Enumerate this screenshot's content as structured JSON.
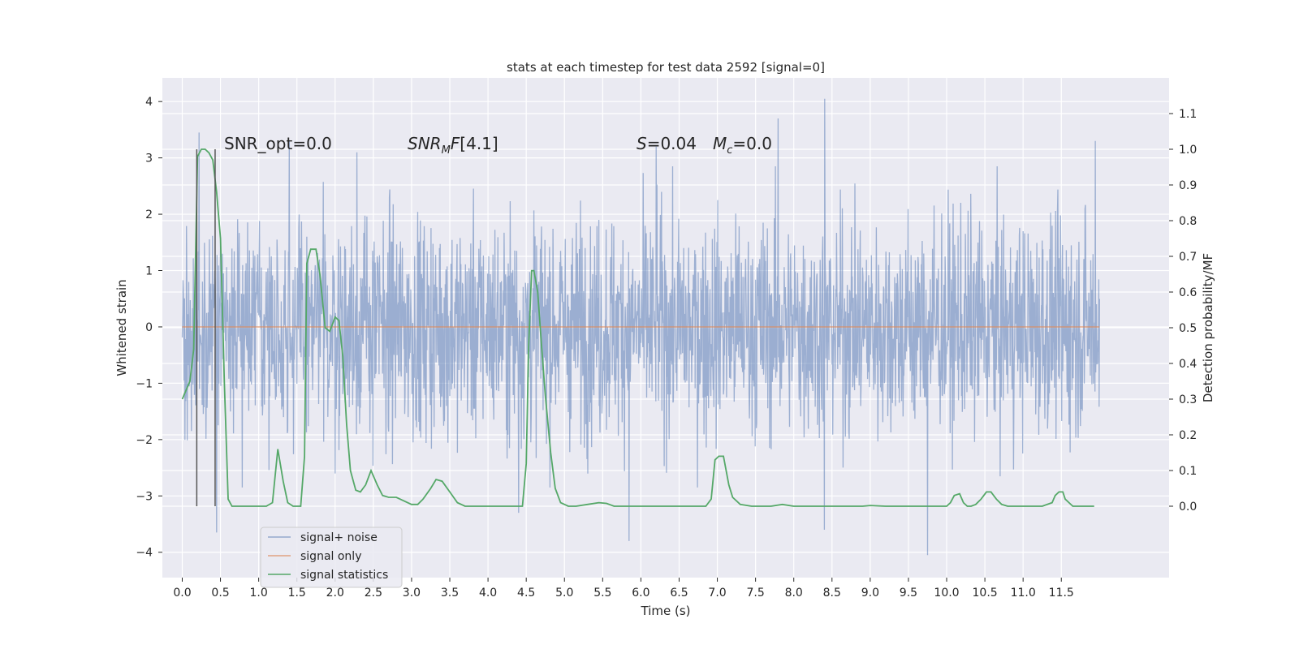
{
  "chart_data": {
    "type": "line",
    "title": "stats at each timestep for test data 2592 [signal=0]",
    "xlabel": "Time (s)",
    "ylabel": "Whitened strain",
    "y2label": "Detection probability/MF",
    "xlim": [
      -0.26,
      12.91
    ],
    "ylim": [
      -4.45,
      4.42
    ],
    "y2lim": [
      -0.2,
      1.2
    ],
    "x_ticks": [
      "0.0",
      "0.5",
      "1.0",
      "1.5",
      "2.0",
      "2.5",
      "3.0",
      "3.5",
      "4.0",
      "4.5",
      "5.0",
      "5.5",
      "6.0",
      "6.5",
      "7.0",
      "7.5",
      "8.0",
      "8.5",
      "9.0",
      "9.5",
      "10.0",
      "10.5",
      "11.0",
      "11.5"
    ],
    "y_ticks": [
      "4",
      "3",
      "2",
      "1",
      "0",
      "−1",
      "−2",
      "−3",
      "−4"
    ],
    "y2_ticks": [
      "1.1",
      "1.0",
      "0.9",
      "0.8",
      "0.7",
      "0.6",
      "0.5",
      "0.4",
      "0.3",
      "0.2",
      "0.1",
      "0.0"
    ],
    "grid": true,
    "legend_position": "lower-left",
    "annotations": {
      "snr_opt": "SNR_opt=0.0",
      "snr_mf": "[4.1]",
      "s_value": "=0.04",
      "mc_value": "=0.0"
    },
    "series": [
      {
        "name": "signal+ noise",
        "color": "#4c72b0",
        "axis": "left",
        "style": "dense-noise",
        "x_range": [
          0.0,
          12.0
        ],
        "typical_band": [
          -1.9,
          1.9
        ],
        "peaks": [
          {
            "x": 0.24,
            "y": 3.45
          },
          {
            "x": 0.45,
            "y": -3.65
          },
          {
            "x": 1.4,
            "y": 3.3
          },
          {
            "x": 2.28,
            "y": 3.1
          },
          {
            "x": 4.4,
            "y": -3.3
          },
          {
            "x": 5.85,
            "y": -3.8
          },
          {
            "x": 6.2,
            "y": 3.2
          },
          {
            "x": 7.8,
            "y": 3.7
          },
          {
            "x": 8.4,
            "y": 4.05
          },
          {
            "x": 8.4,
            "y": -3.6
          },
          {
            "x": 9.75,
            "y": -4.05
          },
          {
            "x": 11.95,
            "y": 3.3
          }
        ]
      },
      {
        "name": "signal only",
        "color": "#dd8452",
        "axis": "left",
        "x": [
          0.0,
          12.0
        ],
        "values": [
          0.0,
          0.0
        ]
      },
      {
        "name": "signal statistics",
        "color": "#55a868",
        "axis": "right",
        "x": [
          0.0,
          0.1,
          0.15,
          0.2,
          0.25,
          0.3,
          0.35,
          0.4,
          0.45,
          0.5,
          0.55,
          0.6,
          0.65,
          0.7,
          1.0,
          1.1,
          1.18,
          1.25,
          1.32,
          1.38,
          1.45,
          1.55,
          1.6,
          1.63,
          1.68,
          1.75,
          1.8,
          1.87,
          1.93,
          2.0,
          2.05,
          2.1,
          2.15,
          2.2,
          2.27,
          2.33,
          2.4,
          2.47,
          2.55,
          2.62,
          2.7,
          2.8,
          2.9,
          3.0,
          3.08,
          3.15,
          3.25,
          3.32,
          3.4,
          3.5,
          3.6,
          3.7,
          4.0,
          4.2,
          4.35,
          4.45,
          4.5,
          4.53,
          4.57,
          4.6,
          4.65,
          4.7,
          4.75,
          4.82,
          4.88,
          4.95,
          5.05,
          5.15,
          5.3,
          5.45,
          5.55,
          5.65,
          5.8,
          6.2,
          6.6,
          6.85,
          6.92,
          6.97,
          7.02,
          7.08,
          7.15,
          7.2,
          7.3,
          7.45,
          7.7,
          7.85,
          8.0,
          8.3,
          8.6,
          8.9,
          9.0,
          9.2,
          9.5,
          9.8,
          10.0,
          10.05,
          10.1,
          10.17,
          10.22,
          10.27,
          10.32,
          10.38,
          10.45,
          10.52,
          10.58,
          10.65,
          10.72,
          10.8,
          10.9,
          11.1,
          11.25,
          11.38,
          11.42,
          11.47,
          11.52,
          11.55,
          11.6,
          11.65,
          11.7,
          11.8,
          11.93
        ],
        "values": [
          0.3,
          0.35,
          0.44,
          0.98,
          1.0,
          1.0,
          0.99,
          0.97,
          0.88,
          0.75,
          0.35,
          0.02,
          0.0,
          0.0,
          0.0,
          0.0,
          0.01,
          0.16,
          0.07,
          0.01,
          0.0,
          0.0,
          0.14,
          0.68,
          0.72,
          0.72,
          0.65,
          0.5,
          0.49,
          0.53,
          0.52,
          0.42,
          0.23,
          0.1,
          0.045,
          0.04,
          0.06,
          0.1,
          0.06,
          0.03,
          0.025,
          0.025,
          0.015,
          0.005,
          0.005,
          0.02,
          0.05,
          0.075,
          0.07,
          0.04,
          0.01,
          0.0,
          0.0,
          0.0,
          0.0,
          0.0,
          0.12,
          0.44,
          0.66,
          0.66,
          0.6,
          0.45,
          0.31,
          0.15,
          0.05,
          0.01,
          0.0,
          0.0,
          0.005,
          0.01,
          0.008,
          0.0,
          0.0,
          0.0,
          0.0,
          0.0,
          0.02,
          0.13,
          0.14,
          0.14,
          0.06,
          0.025,
          0.005,
          0.0,
          0.0,
          0.005,
          0.0,
          0.0,
          0.0,
          0.0,
          0.002,
          0.0,
          0.0,
          0.0,
          0.0,
          0.01,
          0.03,
          0.035,
          0.01,
          0.0,
          0.0,
          0.005,
          0.02,
          0.04,
          0.04,
          0.02,
          0.005,
          0.0,
          0.0,
          0.0,
          0.0,
          0.01,
          0.03,
          0.04,
          0.04,
          0.02,
          0.01,
          0.0,
          0.0,
          0.0,
          0.0
        ]
      },
      {
        "name": "",
        "color": "#555555",
        "axis": "right",
        "style": "markers",
        "x": [
          0.19,
          0.43
        ],
        "values": [
          1.0,
          1.0
        ]
      }
    ]
  }
}
